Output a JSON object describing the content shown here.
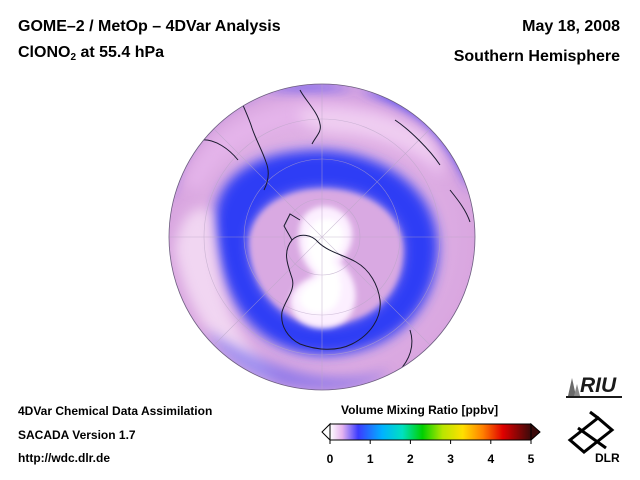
{
  "header": {
    "title_line1": "GOME–2 / MetOp – 4DVar Analysis",
    "title_species_prefix": "ClONO",
    "title_species_subscript": "2",
    "title_species_suffix": " at 55.4 hPa",
    "date": "May 18, 2008",
    "hemisphere": "Southern Hemisphere"
  },
  "footer": {
    "line1": "4DVar Chemical Data Assimilation",
    "line2": "SACADA Version 1.7",
    "line3": "http://wdc.dlr.de"
  },
  "colorbar": {
    "title": "Volume Mixing Ratio [ppbv]",
    "ticks": [
      "0",
      "1",
      "2",
      "3",
      "4",
      "5"
    ],
    "min": 0,
    "max": 5
  },
  "logos": {
    "riu": "RIU",
    "dlr": "DLR"
  },
  "colors": {
    "ocean_low": "#3b3bff",
    "mid_pink": "#e6b8e6",
    "high_white": "#fbecf6",
    "coastline": "#1a1a2e"
  }
}
